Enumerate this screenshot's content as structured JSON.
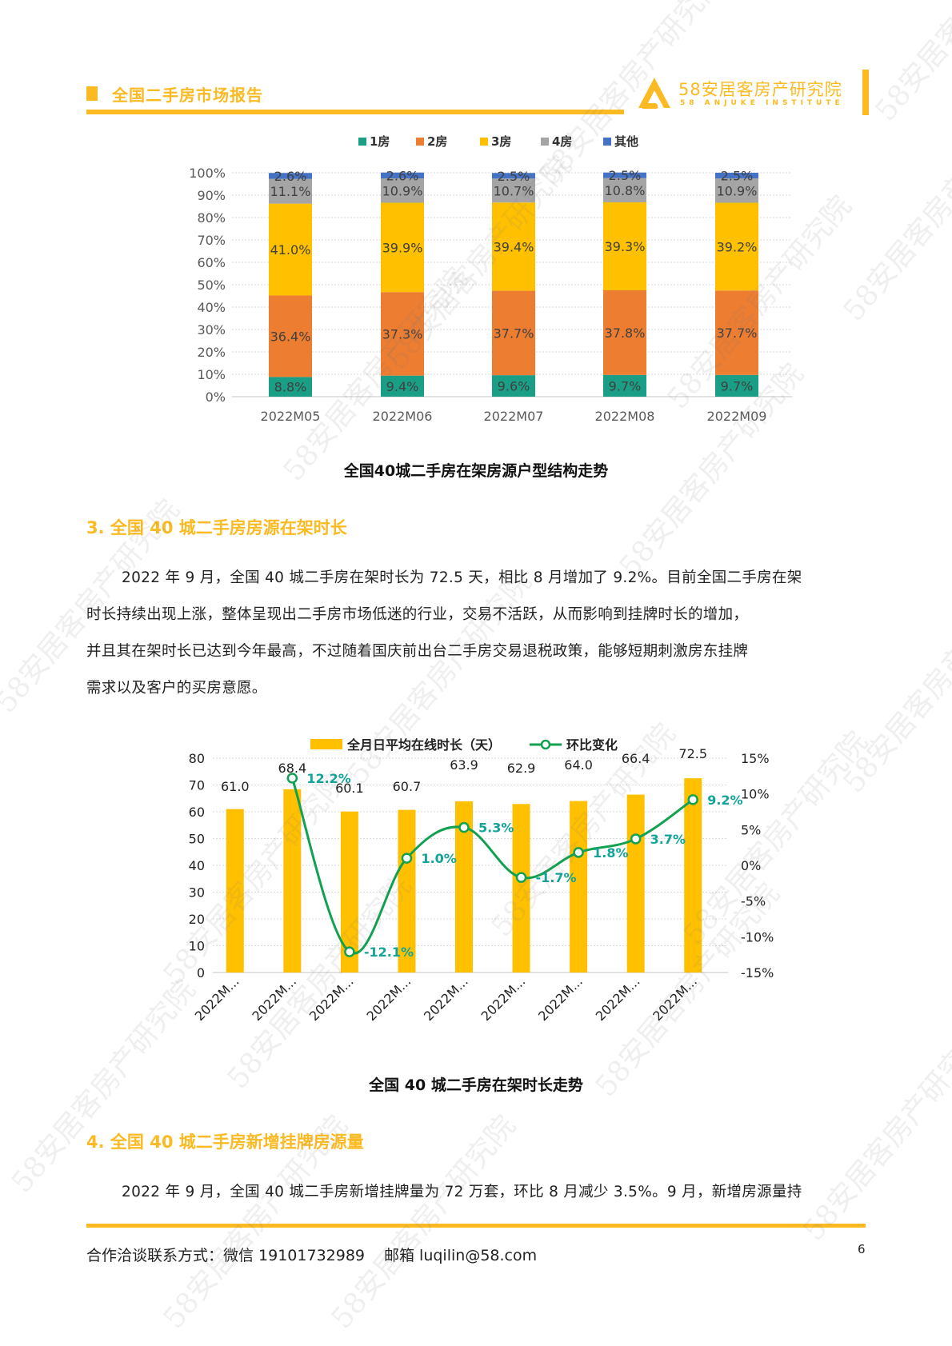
{
  "header": {
    "title": "全国二手房市场报告",
    "logo_cn": "58安居客房产研究院",
    "logo_en": "58 ANJUKE INSTITUTE"
  },
  "chart1": {
    "caption": "全国40城二手房在架房源户型结构走势",
    "legend": [
      "1房",
      "2房",
      "3房",
      "4房",
      "其他"
    ]
  },
  "section3": {
    "title": "3. 全国 40 城二手房房源在架时长",
    "paragraph_lines": [
      "2022 年 9 月，全国 40 城二手房在架时长为 72.5 天，相比 8 月增加了 9.2%。目前全国二手房在架",
      "时长持续出现上涨，整体呈现出二手房市场低迷的行业，交易不活跃，从而影响到挂牌时长的增加，",
      "并且其在架时长已达到今年最高，不过随着国庆前出台二手房交易退税政策，能够短期刺激房东挂牌",
      "需求以及客户的买房意愿。"
    ]
  },
  "chart2": {
    "caption": "全国 40 城二手房在架时长走势",
    "legend_bar": "全月日平均在线时长（天）",
    "legend_line": "环比变化"
  },
  "section4": {
    "title": "4. 全国 40 城二手房新增挂牌房源量",
    "paragraph_lines": [
      "2022 年 9 月，全国 40 城二手房新增挂牌量为 72 万套，环比 8 月减少 3.5%。9 月，新增房源量持"
    ]
  },
  "footer": {
    "contact": "合作洽谈联系方式：微信 19101732989",
    "email": "邮箱 luqilin@58.com",
    "page_number": "6"
  },
  "watermark_text": "58安居客房产研究院",
  "colors": {
    "brand": "#FBBA22",
    "room1": "#1A9E85",
    "room2": "#ED7D31",
    "room3": "#FFC000",
    "room4": "#A5A5A5",
    "other": "#4472C4",
    "line": "#12A150",
    "line_label": "#12A39A"
  },
  "chart_data": [
    {
      "type": "bar",
      "stacked": true,
      "percent": true,
      "title": "全国40城二手房在架房源户型结构走势",
      "categories": [
        "2022M05",
        "2022M06",
        "2022M07",
        "2022M08",
        "2022M09"
      ],
      "series": [
        {
          "name": "1房",
          "values": [
            8.8,
            9.4,
            9.6,
            9.7,
            9.7
          ],
          "color": "#1A9E85"
        },
        {
          "name": "2房",
          "values": [
            36.4,
            37.3,
            37.7,
            37.8,
            37.7
          ],
          "color": "#ED7D31"
        },
        {
          "name": "3房",
          "values": [
            41.0,
            39.9,
            39.4,
            39.3,
            39.2
          ],
          "color": "#FFC000"
        },
        {
          "name": "4房",
          "values": [
            11.1,
            10.9,
            10.7,
            10.8,
            10.9
          ],
          "color": "#A5A5A5"
        },
        {
          "name": "其他",
          "values": [
            2.6,
            2.6,
            2.5,
            2.5,
            2.5
          ],
          "color": "#4472C4"
        }
      ],
      "yticks": [
        "0%",
        "10%",
        "20%",
        "30%",
        "40%",
        "50%",
        "60%",
        "70%",
        "80%",
        "90%",
        "100%"
      ],
      "ylim": [
        0,
        100
      ],
      "legend_position": "top",
      "grid": true
    },
    {
      "type": "bar+line",
      "title": "全国 40 城二手房在架时长走势",
      "categories": [
        "2022M...",
        "2022M...",
        "2022M...",
        "2022M...",
        "2022M...",
        "2022M...",
        "2022M...",
        "2022M...",
        "2022M..."
      ],
      "series": [
        {
          "name": "全月日平均在线时长（天）",
          "type": "bar",
          "axis": "left",
          "values": [
            61.0,
            68.4,
            60.1,
            60.7,
            63.9,
            62.9,
            64.0,
            66.4,
            72.5
          ],
          "color": "#FFC000"
        },
        {
          "name": "环比变化",
          "type": "line",
          "axis": "right",
          "values": [
            null,
            12.2,
            -12.1,
            1.0,
            5.3,
            -1.7,
            1.8,
            3.7,
            9.2
          ],
          "labels": [
            "",
            "12.2%",
            "-12.1%",
            "1.0%",
            "5.3%",
            "-1.7%",
            "1.8%",
            "3.7%",
            "9.2%"
          ],
          "color": "#12A150"
        }
      ],
      "yticks_left": [
        "0",
        "10",
        "20",
        "30",
        "40",
        "50",
        "60",
        "70",
        "80"
      ],
      "ylim_left": [
        0,
        80
      ],
      "yticks_right": [
        "-15%",
        "-10%",
        "-5%",
        "0%",
        "5%",
        "10%",
        "15%"
      ],
      "ylim_right": [
        -15,
        15
      ],
      "legend_position": "top",
      "grid": true
    }
  ]
}
